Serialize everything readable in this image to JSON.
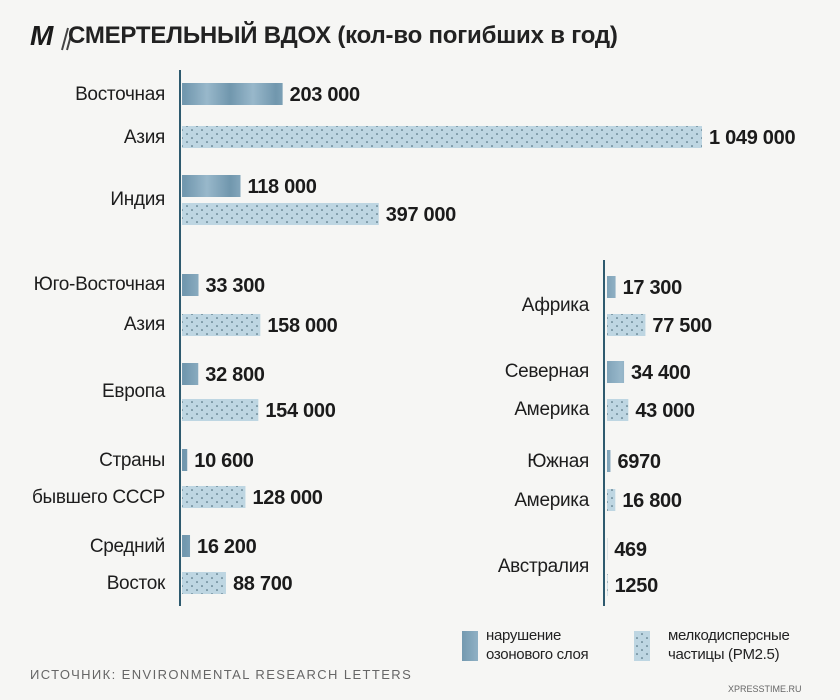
{
  "logo": "M",
  "chart_data": {
    "type": "bar",
    "orientation": "horizontal",
    "title": "СМЕРТЕЛЬНЫЙ ВДОХ (кол-во погибших в год)",
    "source": "ИСТОЧНИК: ENVIRONMENTAL RESEARCH LETTERS",
    "categories": [
      "Восточная\nАзия",
      "Индия",
      "Юго-Восточная\nАзия",
      "Европа",
      "Страны\nбывшего СССР",
      "Средний\nВосток",
      "Африка",
      "Северная\nАмерика",
      "Южная\nАмерика",
      "Австралия"
    ],
    "series": [
      {
        "name": "нарушение озонового слоя",
        "color": "#86aac0",
        "values": [
          203000,
          118000,
          33300,
          32800,
          10600,
          16200,
          17300,
          34400,
          6970,
          469
        ],
        "value_labels": [
          "203 000",
          "118 000",
          "33 300",
          "32 800",
          "10 600",
          "16 200",
          "17 300",
          "34 400",
          "6970",
          "469"
        ]
      },
      {
        "name": "мелкодисперсные частицы (PM2.5)",
        "color": "#bed6e2",
        "values": [
          1049000,
          397000,
          158000,
          154000,
          128000,
          88700,
          77500,
          43000,
          16800,
          1250
        ],
        "value_labels": [
          "1 049 000",
          "397 000",
          "158 000",
          "154 000",
          "128 000",
          "88 700",
          "77 500",
          "43 000",
          "16 800",
          "1250"
        ]
      }
    ],
    "legend": "bottom-right"
  },
  "watermark": "XPRESSTIME.RU"
}
